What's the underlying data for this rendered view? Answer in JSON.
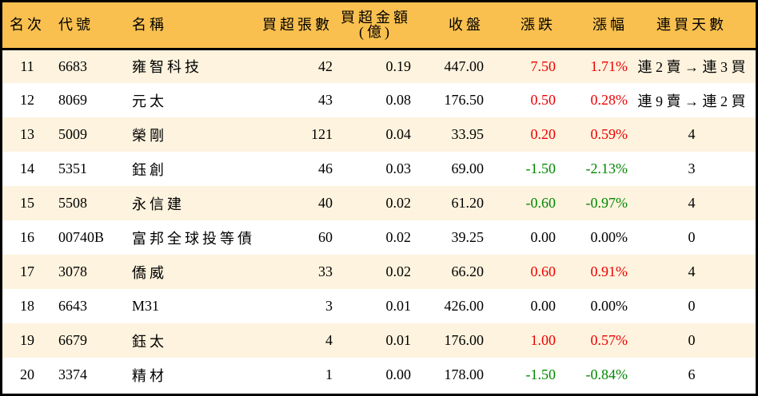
{
  "table": {
    "headers": {
      "rank": "名次",
      "code": "代號",
      "name": "名稱",
      "net_buy_lots": "買超張數",
      "net_buy_amount_line1": "買超金額",
      "net_buy_amount_line2": "(億)",
      "close": "收盤",
      "change": "漲跌",
      "change_pct": "漲幅",
      "consecutive_buy_days": "連買天數"
    },
    "colors": {
      "header_bg": "#f9c04f",
      "odd_row_bg": "#fdf3de",
      "even_row_bg": "#ffffff",
      "up": "#ee0000",
      "down": "#008800"
    },
    "rows": [
      {
        "rank": "11",
        "code": "6683",
        "name": "雍智科技",
        "lots": "42",
        "amount": "0.19",
        "close": "447.00",
        "change": "7.50",
        "pct": "1.71%",
        "days": "連 2 賣 → 連 3 買",
        "dir": "up"
      },
      {
        "rank": "12",
        "code": "8069",
        "name": "元太",
        "lots": "43",
        "amount": "0.08",
        "close": "176.50",
        "change": "0.50",
        "pct": "0.28%",
        "days": "連 9 賣 → 連 2 買",
        "dir": "up"
      },
      {
        "rank": "13",
        "code": "5009",
        "name": "榮剛",
        "lots": "121",
        "amount": "0.04",
        "close": "33.95",
        "change": "0.20",
        "pct": "0.59%",
        "days": "4",
        "dir": "up"
      },
      {
        "rank": "14",
        "code": "5351",
        "name": "鈺創",
        "lots": "46",
        "amount": "0.03",
        "close": "69.00",
        "change": "-1.50",
        "pct": "-2.13%",
        "days": "3",
        "dir": "down"
      },
      {
        "rank": "15",
        "code": "5508",
        "name": "永信建",
        "lots": "40",
        "amount": "0.02",
        "close": "61.20",
        "change": "-0.60",
        "pct": "-0.97%",
        "days": "4",
        "dir": "down"
      },
      {
        "rank": "16",
        "code": "00740B",
        "name": "富邦全球投等債",
        "lots": "60",
        "amount": "0.02",
        "close": "39.25",
        "change": "0.00",
        "pct": "0.00%",
        "days": "0",
        "dir": "flat"
      },
      {
        "rank": "17",
        "code": "3078",
        "name": "僑威",
        "lots": "33",
        "amount": "0.02",
        "close": "66.20",
        "change": "0.60",
        "pct": "0.91%",
        "days": "4",
        "dir": "up"
      },
      {
        "rank": "18",
        "code": "6643",
        "name": "M31",
        "lots": "3",
        "amount": "0.01",
        "close": "426.00",
        "change": "0.00",
        "pct": "0.00%",
        "days": "0",
        "dir": "flat"
      },
      {
        "rank": "19",
        "code": "6679",
        "name": "鈺太",
        "lots": "4",
        "amount": "0.01",
        "close": "176.00",
        "change": "1.00",
        "pct": "0.57%",
        "days": "0",
        "dir": "up"
      },
      {
        "rank": "20",
        "code": "3374",
        "name": "精材",
        "lots": "1",
        "amount": "0.00",
        "close": "178.00",
        "change": "-1.50",
        "pct": "-0.84%",
        "days": "6",
        "dir": "down"
      }
    ]
  }
}
